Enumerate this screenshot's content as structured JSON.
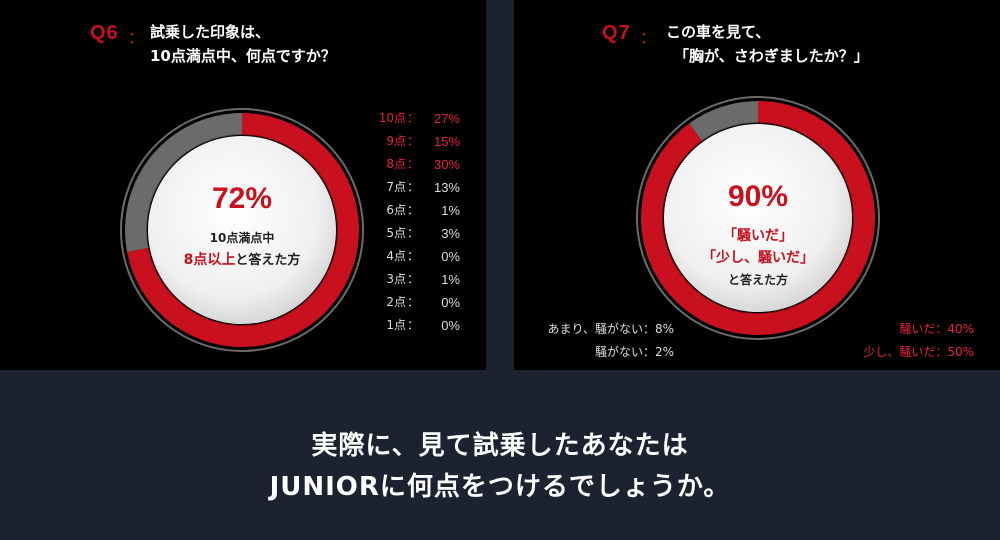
{
  "q6": {
    "label": "Q6",
    "colon": "：",
    "question_line1": "試乗した印象は、",
    "question_line2": "10点満点中、何点ですか？",
    "center_value": "72%",
    "center_line1": "10点満点中",
    "center_line2_red": "8点以上",
    "center_line2_rest": "と答えた方",
    "legend": [
      {
        "label": "10点",
        "value": "27%",
        "color": "red"
      },
      {
        "label": "9点",
        "value": "15%",
        "color": "red"
      },
      {
        "label": "8点",
        "value": "30%",
        "color": "red"
      },
      {
        "label": "7点",
        "value": "13%",
        "color": "white"
      },
      {
        "label": "6点",
        "value": "1%",
        "color": "white"
      },
      {
        "label": "5点",
        "value": "3%",
        "color": "white"
      },
      {
        "label": "4点",
        "value": "0%",
        "color": "white"
      },
      {
        "label": "3点",
        "value": "1%",
        "color": "white"
      },
      {
        "label": "2点",
        "value": "0%",
        "color": "white"
      },
      {
        "label": "1点",
        "value": "0%",
        "color": "white"
      }
    ],
    "legend_sep": "："
  },
  "q7": {
    "label": "Q7",
    "colon": "：",
    "question_line1": "この車を見て、",
    "question_line2": "「胸が、さわぎましたか？」",
    "center_value": "90%",
    "center_line1": "「騒いだ」",
    "center_line2": "「少し、騒いだ」",
    "center_line3": "と答えた方",
    "legend_left": [
      {
        "text": "あまり、騒がない：8%"
      },
      {
        "text": "騒がない：2%"
      }
    ],
    "legend_right": [
      {
        "text": "騒いだ：40%"
      },
      {
        "text": "少し、騒いだ：50%"
      }
    ]
  },
  "footer": {
    "line1": "実際に、見て試乗したあなたは",
    "line2": "JUNIORに何点をつけるでしょうか。"
  },
  "colors": {
    "red": "#c8101e",
    "gray": "#6b6b6b",
    "panel": "#000000",
    "background": "#1d2230"
  },
  "chart_data": [
    {
      "type": "pie",
      "categories": [
        "10点",
        "9点",
        "8点",
        "7点",
        "6点",
        "5点",
        "4点",
        "3点",
        "2点",
        "1点"
      ],
      "values": [
        27,
        15,
        30,
        13,
        1,
        3,
        0,
        1,
        0,
        0
      ],
      "highlight": {
        "value": 72,
        "unit": "%"
      }
    },
    {
      "type": "pie",
      "categories": [
        "騒いだ",
        "少し、騒いだ",
        "あまり、騒がない",
        "騒がない"
      ],
      "values": [
        40,
        50,
        8,
        2
      ],
      "highlight": {
        "value": 90,
        "unit": "%"
      }
    }
  ]
}
